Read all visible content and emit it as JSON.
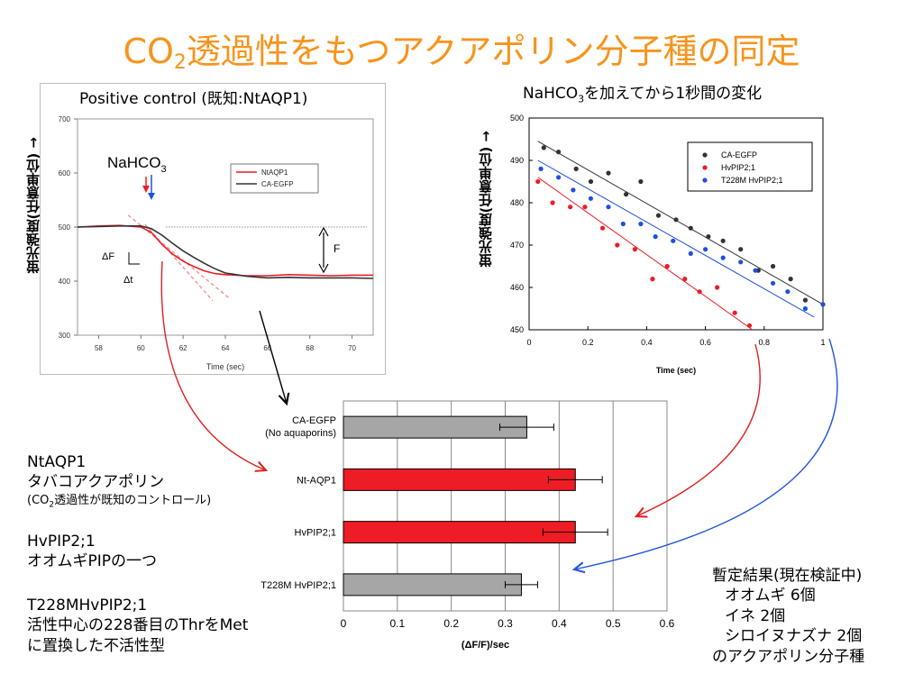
{
  "title": {
    "prefix": "CO",
    "sub": "2",
    "rest": "透過性をもつアクアポリン分子種の同定"
  },
  "left_chart_title": "Positive control (既知:NtAQP1)",
  "right_chart_title": {
    "prefix": "NaHCO",
    "sub": "3",
    "rest": "を加えてから1秒間の変化"
  },
  "y_axis_label": "蛍光強度(任意単位) →",
  "colors": {
    "title": "#f7941d",
    "red": "#ee1c25",
    "blue": "#1f4fe0",
    "gray": "#a6a6a6",
    "black": "#333333"
  },
  "left_notes": {
    "ntaqp1_name": "NtAQP1",
    "ntaqp1_desc": "タバコアクアポリン",
    "ntaqp1_note_pre": "(CO",
    "ntaqp1_note_sub": "2",
    "ntaqp1_note_post": "透過性が既知のコントロール)",
    "hvpip_name": "HvPIP2;1",
    "hvpip_desc": "オオムギPIPの一つ",
    "t228m_name": "T228MHvPIP2;1",
    "t228m_desc1": "活性中心の228番目のThrをMet",
    "t228m_desc2": "に置換した不活性型"
  },
  "right_notes": {
    "l1": "暫定結果(現在検証中)",
    "l2": "オオムギ 6個",
    "l3": "イネ 2個",
    "l4": "シロイヌナズナ 2個",
    "l5": "のアクアポリン分子種"
  },
  "chart_data": [
    {
      "type": "line",
      "title": "Positive control (既知:NtAQP1)",
      "xlabel": "Time (sec)",
      "ylabel": "蛍光強度(任意単位) →",
      "xlim": [
        57,
        71
      ],
      "ylim": [
        300,
        700
      ],
      "x_ticks": [
        58,
        60,
        62,
        64,
        66,
        68,
        70
      ],
      "y_ticks": [
        300,
        400,
        500,
        600,
        700
      ],
      "legend": "top-right",
      "grid": false,
      "series": [
        {
          "name": "NtAQP1",
          "color": "#ee1c25",
          "x": [
            57,
            58,
            59,
            60,
            60.5,
            61,
            61.5,
            62,
            62.5,
            63,
            63.5,
            64,
            65,
            66,
            67,
            68,
            69,
            70,
            71
          ],
          "y": [
            500,
            502,
            503,
            500,
            490,
            468,
            450,
            437,
            427,
            419,
            414,
            412,
            410,
            410,
            412,
            411,
            410,
            411,
            411
          ]
        },
        {
          "name": "CA-EGFP",
          "color": "#333333",
          "x": [
            57,
            58,
            59,
            60,
            60.5,
            61,
            61.5,
            62,
            62.5,
            63,
            63.5,
            64,
            65,
            66,
            67,
            68,
            69,
            70,
            71
          ],
          "y": [
            500,
            501,
            502,
            502,
            497,
            485,
            470,
            456,
            444,
            433,
            423,
            415,
            409,
            406,
            407,
            406,
            406,
            406,
            405
          ]
        }
      ],
      "annotations": {
        "stimulus_label": {
          "pre": "NaHCO",
          "sub": "3"
        },
        "delta_f": "ΔF",
        "delta_t": "Δt",
        "f_label": "F"
      }
    },
    {
      "type": "scatter",
      "xlabel": "Time (sec)",
      "ylabel": "蛍光強度(任意単位) →",
      "xlim": [
        0,
        1
      ],
      "ylim": [
        450,
        500
      ],
      "x_ticks": [
        0,
        0.2,
        0.4,
        0.6,
        0.8,
        1
      ],
      "y_ticks": [
        450,
        460,
        470,
        480,
        490,
        500
      ],
      "legend": "top-right",
      "series": [
        {
          "name": "CA-EGFP",
          "color": "#333333",
          "x": [
            0.05,
            0.1,
            0.16,
            0.21,
            0.27,
            0.33,
            0.38,
            0.44,
            0.5,
            0.55,
            0.61,
            0.66,
            0.72,
            0.78,
            0.83,
            0.89,
            0.94,
            1.0
          ],
          "y": [
            493,
            492,
            488,
            485,
            487,
            482,
            485,
            477,
            476,
            474,
            472,
            471,
            469,
            464,
            465,
            462,
            457,
            456
          ],
          "fit": [
            [
              0.03,
              494.5
            ],
            [
              1.0,
              456
            ]
          ]
        },
        {
          "name": "HvPIP2;1",
          "color": "#ee1c25",
          "x": [
            0.03,
            0.08,
            0.14,
            0.19,
            0.25,
            0.3,
            0.36,
            0.42,
            0.47,
            0.53,
            0.58,
            0.64,
            0.7,
            0.75
          ],
          "y": [
            485,
            480,
            479,
            479,
            474,
            470,
            469,
            462,
            465,
            462,
            459,
            460,
            454,
            451
          ],
          "fit": [
            [
              0.03,
              486
            ],
            [
              0.76,
              450
            ]
          ]
        },
        {
          "name": "T228M HvPIP2;1",
          "color": "#1f4fe0",
          "x": [
            0.04,
            0.1,
            0.15,
            0.21,
            0.27,
            0.32,
            0.38,
            0.43,
            0.49,
            0.55,
            0.6,
            0.66,
            0.72,
            0.77,
            0.83,
            0.88,
            0.94,
            1.0
          ],
          "y": [
            488,
            486,
            483,
            481,
            479,
            475,
            475,
            472,
            471,
            468,
            469,
            467,
            466,
            464,
            461,
            459,
            455,
            456
          ],
          "fit": [
            [
              0.03,
              490
            ],
            [
              0.97,
              453
            ]
          ]
        }
      ]
    },
    {
      "type": "bar",
      "orientation": "horizontal",
      "xlabel": "(ΔF/F)/sec",
      "xlim": [
        0,
        0.6
      ],
      "x_ticks": [
        0,
        0.1,
        0.2,
        0.3,
        0.4,
        0.5,
        0.6
      ],
      "grid": true,
      "categories": [
        "CA-EGFP",
        "Nt-AQP1",
        "HvPIP2;1",
        "T228M HvPIP2;1"
      ],
      "category_sublabels": [
        "(No aquaporins)",
        "",
        "",
        ""
      ],
      "values": [
        0.34,
        0.43,
        0.43,
        0.33
      ],
      "errors": [
        0.05,
        0.05,
        0.06,
        0.03
      ],
      "bar_colors": [
        "#a6a6a6",
        "#ee1c25",
        "#ee1c25",
        "#a6a6a6"
      ]
    }
  ]
}
